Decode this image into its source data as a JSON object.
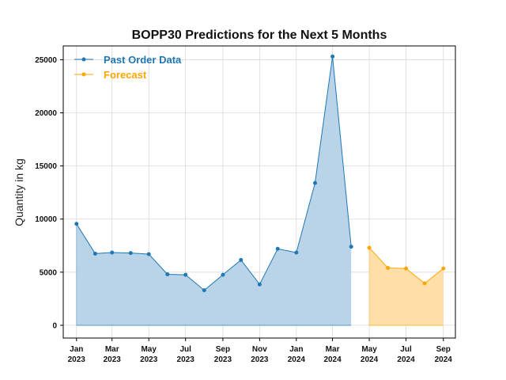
{
  "chart_data": {
    "type": "area",
    "title": "BOPP30 Predictions for the Next 5 Months",
    "xlabel": "",
    "ylabel": "Quantity in kg",
    "ylim": [
      -1200,
      26300
    ],
    "yticks": [
      0,
      5000,
      10000,
      15000,
      20000,
      25000
    ],
    "xlim": [
      "2022-12-10",
      "2024-09-21"
    ],
    "xticks": [
      {
        "date": "2023-01-01",
        "label": [
          "Jan",
          "2023"
        ]
      },
      {
        "date": "2023-03-01",
        "label": [
          "Mar",
          "2023"
        ]
      },
      {
        "date": "2023-05-01",
        "label": [
          "May",
          "2023"
        ]
      },
      {
        "date": "2023-07-01",
        "label": [
          "Jul",
          "2023"
        ]
      },
      {
        "date": "2023-09-01",
        "label": [
          "Sep",
          "2023"
        ]
      },
      {
        "date": "2023-11-01",
        "label": [
          "Nov",
          "2023"
        ]
      },
      {
        "date": "2024-01-01",
        "label": [
          "Jan",
          "2024"
        ]
      },
      {
        "date": "2024-03-01",
        "label": [
          "Mar",
          "2024"
        ]
      },
      {
        "date": "2024-05-01",
        "label": [
          "May",
          "2024"
        ]
      },
      {
        "date": "2024-07-01",
        "label": [
          "Jul",
          "2024"
        ]
      },
      {
        "date": "2024-09-01",
        "label": [
          "Sep",
          "2024"
        ]
      }
    ],
    "grid": true,
    "legend_position": "top-left",
    "series": [
      {
        "name": "Past Order Data",
        "color": "#1f77b4",
        "fill": "#b9d4e8",
        "x": [
          "2023-01-01",
          "2023-02-01",
          "2023-03-01",
          "2023-04-01",
          "2023-05-01",
          "2023-06-01",
          "2023-07-01",
          "2023-08-01",
          "2023-09-01",
          "2023-10-01",
          "2023-11-01",
          "2023-12-01",
          "2024-01-01",
          "2024-02-01",
          "2024-03-01",
          "2024-04-01"
        ],
        "values": [
          9550,
          6750,
          6850,
          6800,
          6700,
          4800,
          4750,
          3300,
          4750,
          6150,
          3850,
          7200,
          6850,
          13400,
          25300,
          7400
        ]
      },
      {
        "name": "Forecast",
        "color": "#ffa500",
        "fill": "#ffdfa8",
        "x": [
          "2024-05-01",
          "2024-06-01",
          "2024-07-01",
          "2024-08-01",
          "2024-09-01"
        ],
        "values": [
          7300,
          5400,
          5350,
          3950,
          5350
        ]
      }
    ]
  }
}
